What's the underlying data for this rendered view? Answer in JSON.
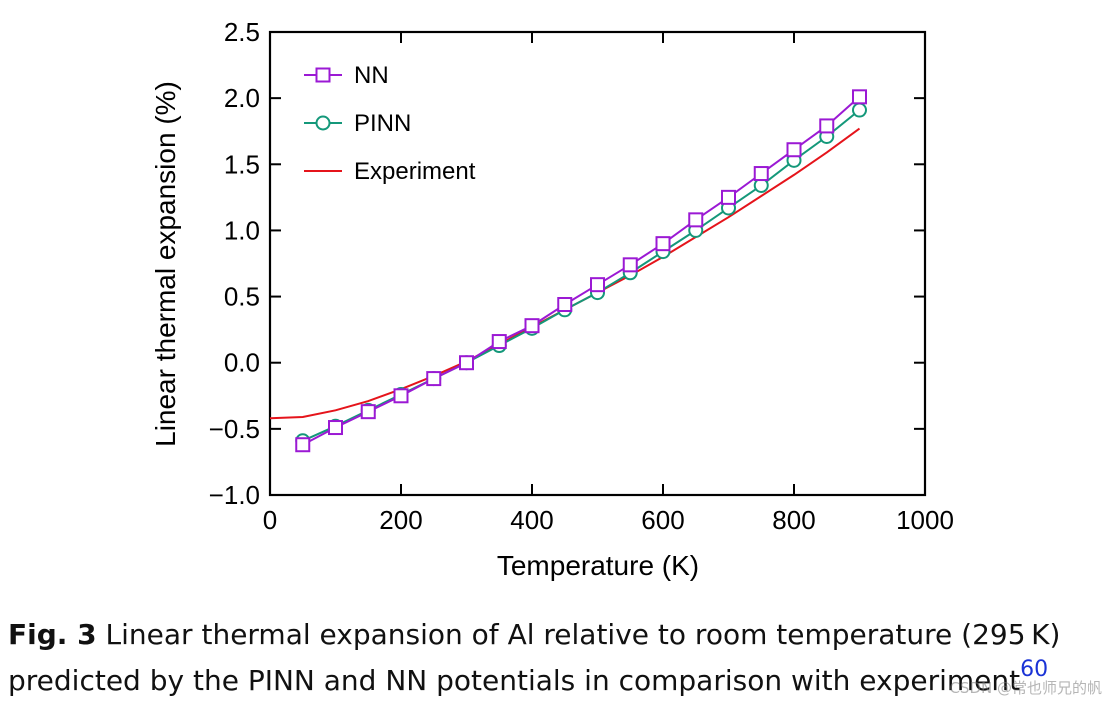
{
  "chart_data": {
    "type": "line",
    "xlabel": "Temperature (K)",
    "ylabel": "Linear thermal expansion (%)",
    "xlim": [
      0,
      1000
    ],
    "ylim": [
      -1.0,
      2.5
    ],
    "xticks": [
      0,
      200,
      400,
      600,
      800,
      1000
    ],
    "xtick_labels": [
      "0",
      "200",
      "400",
      "600",
      "800",
      "1000"
    ],
    "yticks": [
      -1.0,
      -0.5,
      0.0,
      0.5,
      1.0,
      1.5,
      2.0,
      2.5
    ],
    "ytick_labels": [
      "−1.0",
      "−0.5",
      "0.0",
      "0.5",
      "1.0",
      "1.5",
      "2.0",
      "2.5"
    ],
    "legend_position": "top-left",
    "grid": false,
    "series": [
      {
        "name": "NN",
        "color": "#9b19d4",
        "marker": "square",
        "x": [
          50,
          100,
          150,
          200,
          250,
          300,
          350,
          400,
          450,
          500,
          550,
          600,
          650,
          700,
          750,
          800,
          850,
          900
        ],
        "y": [
          -0.62,
          -0.49,
          -0.37,
          -0.25,
          -0.12,
          0.0,
          0.16,
          0.28,
          0.44,
          0.59,
          0.74,
          0.9,
          1.08,
          1.25,
          1.43,
          1.61,
          1.79,
          2.01
        ]
      },
      {
        "name": "PINN",
        "color": "#14987a",
        "marker": "circle",
        "x": [
          50,
          100,
          150,
          200,
          250,
          300,
          350,
          400,
          450,
          500,
          550,
          600,
          650,
          700,
          750,
          800,
          850,
          900
        ],
        "y": [
          -0.59,
          -0.48,
          -0.36,
          -0.24,
          -0.12,
          0.0,
          0.13,
          0.26,
          0.4,
          0.53,
          0.68,
          0.84,
          1.0,
          1.17,
          1.34,
          1.53,
          1.71,
          1.91
        ]
      },
      {
        "name": "Experiment",
        "color": "#e5141b",
        "marker": "none",
        "x": [
          0,
          50,
          100,
          150,
          200,
          250,
          300,
          350,
          400,
          450,
          500,
          550,
          600,
          650,
          700,
          750,
          800,
          850,
          900
        ],
        "y": [
          -0.42,
          -0.41,
          -0.36,
          -0.29,
          -0.2,
          -0.1,
          0.01,
          0.14,
          0.27,
          0.4,
          0.53,
          0.66,
          0.8,
          0.95,
          1.1,
          1.26,
          1.42,
          1.59,
          1.77
        ]
      }
    ]
  },
  "caption": {
    "label": "Fig. 3",
    "line1": " Linear thermal expansion of Al relative to room temperature (295 K)",
    "line2": "predicted by the PINN and NN potentials in comparison with experiment",
    "ref": "60"
  },
  "watermark": "CSDN @常也师兄的帆"
}
